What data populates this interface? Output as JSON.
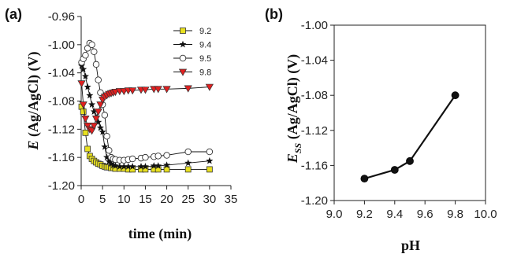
{
  "panels": {
    "a_label": "(a)",
    "b_label": "(b)"
  },
  "chart_data": [
    {
      "type": "line",
      "xlabel": "time (min)",
      "ylabel_italic": "E",
      "ylabel_rest": " (Ag/AgCl) (V)",
      "xlim": [
        0,
        35
      ],
      "ylim": [
        -1.2,
        -0.96
      ],
      "xticks": [
        "0",
        "5",
        "10",
        "15",
        "20",
        "25",
        "30",
        "35"
      ],
      "xtick_values": [
        0,
        5,
        10,
        15,
        20,
        25,
        30,
        35
      ],
      "yticks": [
        "-0.96",
        "-1.00",
        "-1.04",
        "-1.08",
        "-1.12",
        "-1.16",
        "-1.20"
      ],
      "ytick_values": [
        -0.96,
        -1.0,
        -1.04,
        -1.08,
        -1.12,
        -1.16,
        -1.2
      ],
      "legend_position": "top-right",
      "series": [
        {
          "name": "9.2",
          "marker": "square",
          "color": "#e8e020",
          "x": [
            0.1,
            0.5,
            1,
            1.5,
            2,
            2.5,
            3,
            3.5,
            4,
            4.5,
            5,
            5.5,
            6,
            6.5,
            7,
            7.5,
            8,
            9,
            10,
            11,
            12,
            14,
            15,
            17,
            18,
            20,
            25,
            30
          ],
          "y": [
            -1.088,
            -1.095,
            -1.125,
            -1.148,
            -1.158,
            -1.162,
            -1.165,
            -1.167,
            -1.169,
            -1.17,
            -1.172,
            -1.173,
            -1.174,
            -1.174,
            -1.175,
            -1.175,
            -1.176,
            -1.176,
            -1.176,
            -1.177,
            -1.177,
            -1.177,
            -1.177,
            -1.177,
            -1.177,
            -1.177,
            -1.177,
            -1.177
          ]
        },
        {
          "name": "9.4",
          "marker": "star",
          "color": "#111111",
          "x": [
            0.1,
            0.5,
            1,
            1.5,
            2,
            2.5,
            3,
            3.5,
            4,
            4.5,
            5,
            5.5,
            6,
            6.5,
            7,
            7.5,
            8,
            9,
            10,
            11,
            12,
            14,
            15,
            17,
            18,
            20,
            25,
            30
          ],
          "y": [
            -1.03,
            -1.035,
            -1.045,
            -1.06,
            -1.072,
            -1.085,
            -1.095,
            -1.103,
            -1.11,
            -1.118,
            -1.124,
            -1.145,
            -1.16,
            -1.166,
            -1.169,
            -1.171,
            -1.172,
            -1.173,
            -1.173,
            -1.173,
            -1.173,
            -1.173,
            -1.173,
            -1.172,
            -1.172,
            -1.171,
            -1.168,
            -1.165
          ]
        },
        {
          "name": "9.5",
          "marker": "circle",
          "color": "#ffffff",
          "x": [
            0.1,
            0.5,
            1,
            1.5,
            2,
            2.5,
            3,
            3.5,
            4,
            4.5,
            5,
            5.5,
            6,
            6.5,
            7,
            7.5,
            8,
            9,
            10,
            11,
            12,
            14,
            15,
            17,
            18,
            20,
            25,
            30
          ],
          "y": [
            -1.025,
            -1.02,
            -1.015,
            -1.005,
            -0.998,
            -1.0,
            -1.01,
            -1.028,
            -1.05,
            -1.068,
            -1.085,
            -1.1,
            -1.13,
            -1.15,
            -1.16,
            -1.162,
            -1.163,
            -1.164,
            -1.164,
            -1.163,
            -1.162,
            -1.161,
            -1.16,
            -1.159,
            -1.158,
            -1.157,
            -1.152,
            -1.152
          ]
        },
        {
          "name": "9.8",
          "marker": "triangle-down",
          "color": "#e02020",
          "x": [
            0.1,
            0.5,
            1,
            1.5,
            2,
            2.5,
            3,
            3.5,
            4,
            4.5,
            5,
            5.5,
            6,
            6.5,
            7,
            7.5,
            8,
            9,
            10,
            11,
            12,
            14,
            15,
            17,
            18,
            20,
            25,
            30
          ],
          "y": [
            -1.055,
            -1.085,
            -1.105,
            -1.115,
            -1.12,
            -1.122,
            -1.115,
            -1.105,
            -1.095,
            -1.085,
            -1.078,
            -1.074,
            -1.072,
            -1.07,
            -1.069,
            -1.068,
            -1.067,
            -1.066,
            -1.066,
            -1.065,
            -1.065,
            -1.064,
            -1.064,
            -1.063,
            -1.063,
            -1.063,
            -1.062,
            -1.06
          ]
        }
      ]
    },
    {
      "type": "line",
      "xlabel": "pH",
      "ylabel_italic": "E",
      "ylabel_sub": "SS",
      "ylabel_rest": " (Ag/AgCl) (V)",
      "xlim": [
        9.0,
        10.0
      ],
      "ylim": [
        -1.2,
        -1.0
      ],
      "xticks": [
        "9.0",
        "9.2",
        "9.4",
        "9.6",
        "9.8",
        "10.0"
      ],
      "xtick_values": [
        9.0,
        9.2,
        9.4,
        9.6,
        9.8,
        10.0
      ],
      "yticks": [
        "-1.00",
        "-1.04",
        "-1.08",
        "-1.12",
        "-1.16",
        "-1.20"
      ],
      "ytick_values": [
        -1.0,
        -1.04,
        -1.08,
        -1.12,
        -1.16,
        -1.2
      ],
      "series": [
        {
          "marker": "circle-filled",
          "color": "#111111",
          "x": [
            9.2,
            9.4,
            9.5,
            9.8
          ],
          "y": [
            -1.175,
            -1.165,
            -1.155,
            -1.08
          ]
        }
      ]
    }
  ]
}
